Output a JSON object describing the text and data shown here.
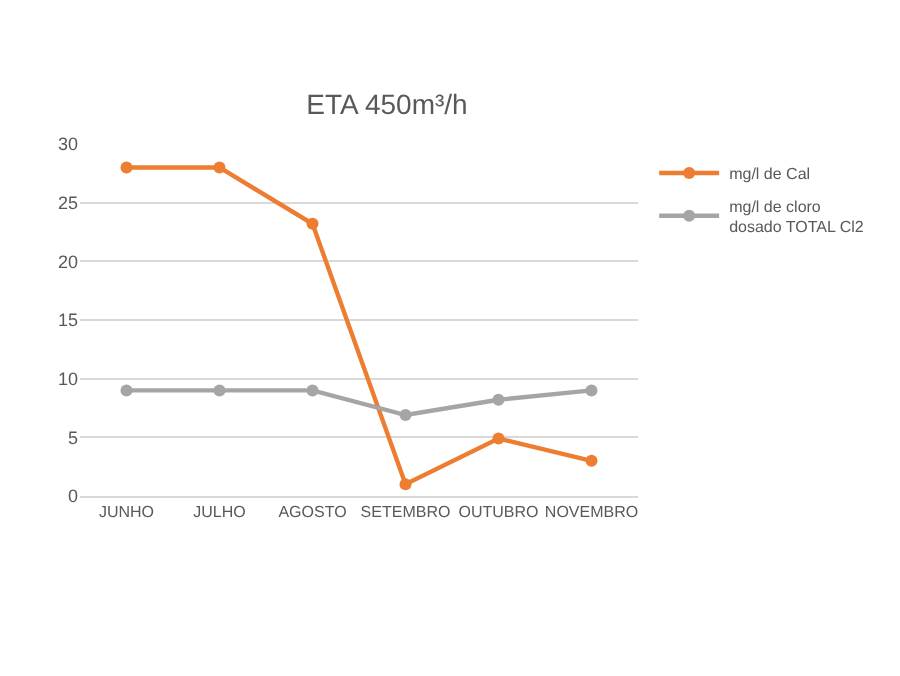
{
  "chart_data": {
    "type": "line",
    "title": "ETA 450m³/h",
    "categories": [
      "JUNHO",
      "JULHO",
      "AGOSTO",
      "SETEMBRO",
      "OUTUBRO",
      "NOVEMBRO"
    ],
    "series": [
      {
        "name": "mg/l de Cal",
        "color": "#ed7d31",
        "values": [
          28,
          28,
          23.2,
          1,
          4.9,
          3
        ]
      },
      {
        "name": "mg/l de cloro dosado TOTAL Cl2",
        "color": "#a5a5a5",
        "values": [
          9,
          9,
          9,
          6.9,
          8.2,
          9
        ]
      }
    ],
    "ylim": [
      0,
      30
    ],
    "yticks": [
      0,
      5,
      10,
      15,
      20,
      25,
      30
    ],
    "grid": "y",
    "legend": "right",
    "marker": "circle",
    "line_style": "solid"
  }
}
